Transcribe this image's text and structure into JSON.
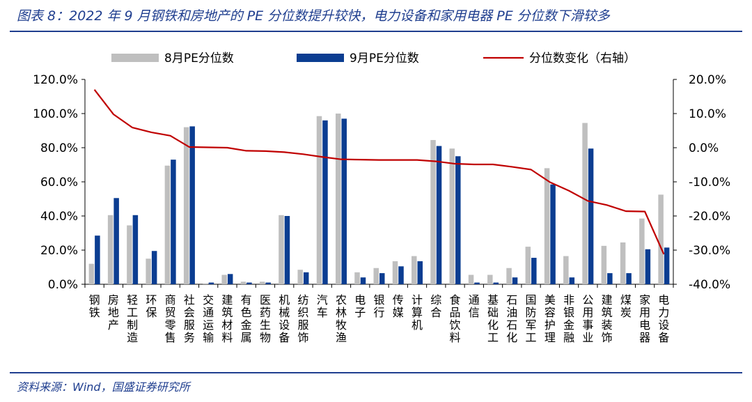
{
  "header": {
    "title": "图表 8：2022 年 9 月钢铁和房地产的 PE 分位数提升较快，电力设备和家用电器 PE 分位数下滑较多"
  },
  "footer": {
    "source": "资料来源：Wind，国盛证券研究所"
  },
  "colors": {
    "series_aug": "#bfbfbf",
    "series_sep": "#0b3d91",
    "series_change": "#c00000",
    "rule": "#1f3e8f"
  },
  "chart_data": {
    "type": "bar",
    "categories": [
      "钢铁",
      "房地产",
      "轻工制造",
      "环保",
      "商贸零售",
      "社会服务",
      "交通运输",
      "建筑材料",
      "有色金属",
      "医药生物",
      "机械设备",
      "纺织服饰",
      "汽车",
      "农林牧渔",
      "电子",
      "银行",
      "传媒",
      "计算机",
      "综合",
      "食品饮料",
      "通信",
      "基础化工",
      "石油石化",
      "国防军工",
      "美容护理",
      "非银金融",
      "公用事业",
      "建筑装饰",
      "煤炭",
      "家用电器",
      "电力设备"
    ],
    "series": [
      {
        "name": "8月PE分位数",
        "type": "bar",
        "axis": "left",
        "values": [
          12.0,
          40.5,
          34.5,
          15.0,
          69.5,
          92.0,
          0.5,
          5.5,
          1.5,
          1.5,
          40.5,
          8.5,
          98.5,
          100.0,
          7.0,
          9.5,
          13.5,
          16.5,
          84.5,
          79.5,
          5.5,
          5.5,
          9.5,
          22.0,
          68.0,
          16.5,
          94.5,
          22.5,
          24.5,
          38.5,
          52.5
        ]
      },
      {
        "name": "9月PE分位数",
        "type": "bar",
        "axis": "left",
        "values": [
          28.5,
          50.5,
          40.5,
          19.5,
          73.0,
          92.5,
          1.0,
          6.0,
          1.0,
          1.0,
          40.0,
          7.0,
          96.0,
          97.0,
          4.0,
          6.5,
          10.5,
          13.5,
          81.0,
          75.0,
          1.0,
          1.0,
          4.0,
          15.5,
          58.5,
          4.0,
          79.5,
          6.5,
          6.5,
          20.5,
          21.5
        ]
      },
      {
        "name": "分位数变化（右轴）",
        "type": "line",
        "axis": "right",
        "values": [
          17.0,
          9.8,
          5.9,
          4.5,
          3.5,
          0.2,
          0.1,
          0.0,
          -0.9,
          -1.0,
          -1.3,
          -1.9,
          -2.7,
          -3.4,
          -3.5,
          -3.6,
          -3.6,
          -3.6,
          -4.0,
          -4.7,
          -4.9,
          -4.9,
          -5.6,
          -6.4,
          -10.1,
          -12.6,
          -15.6,
          -16.8,
          -18.6,
          -18.7,
          -31.2
        ]
      }
    ],
    "y_left": {
      "min": 0,
      "max": 120,
      "step": 20,
      "format": "percent1"
    },
    "y_right": {
      "min": -40,
      "max": 20,
      "step": 10,
      "format": "percent1"
    },
    "legend": "top",
    "grid": false
  }
}
